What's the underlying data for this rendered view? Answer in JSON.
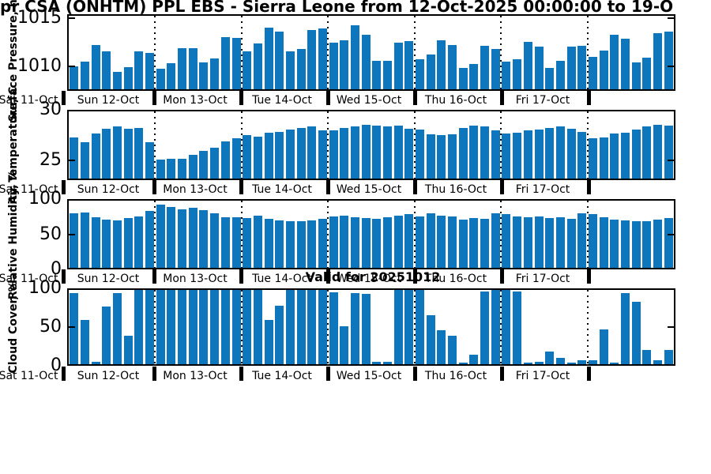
{
  "title": "pr CSA (ONHTM) PPL EBS  - Sierra Leone from 12-Oct-2025 00:00:00 to 19-O",
  "annotations": {
    "valid_for": "Valid for 20251012"
  },
  "colors": {
    "bar": "#0e76bd",
    "axis": "#000000"
  },
  "x_axis": {
    "day_labels": [
      "Sat 11-Oct",
      "Sun 12-Oct",
      "Mon 13-Oct",
      "Tue 14-Oct",
      "Wed 15-Oct",
      "Thu 16-Oct",
      "Fri 17-Oct",
      ""
    ]
  },
  "chart_data": [
    {
      "id": "surface_pressure",
      "type": "bar",
      "ylabel": "Surface Pressure, hPa",
      "ylim": [
        1007.5,
        1015.4
      ],
      "yticks": [
        1010,
        1015
      ],
      "bars_per_day": 8,
      "values": [
        1010.0,
        1010.5,
        1012.3,
        1011.6,
        1009.4,
        1009.9,
        1011.6,
        1011.4,
        1009.7,
        1010.3,
        1011.9,
        1011.9,
        1010.4,
        1010.8,
        1013.1,
        1013.0,
        1011.6,
        1012.4,
        1014.1,
        1013.7,
        1011.6,
        1011.8,
        1013.9,
        1014.0,
        1012.5,
        1012.8,
        1014.4,
        1013.4,
        1010.6,
        1010.6,
        1012.5,
        1012.7,
        1010.7,
        1011.2,
        1012.8,
        1012.3,
        1009.8,
        1010.2,
        1012.2,
        1011.8,
        1010.5,
        1010.7,
        1012.6,
        1012.1,
        1009.8,
        1010.6,
        1012.1,
        1012.2,
        1011.0,
        1011.7,
        1013.4,
        1012.9,
        1010.4,
        1010.9,
        1013.5,
        1013.7
      ]
    },
    {
      "id": "air_temperature",
      "type": "bar",
      "ylabel": "Air Temperature, C",
      "ylim": [
        23,
        30
      ],
      "yticks": [
        25,
        30
      ],
      "bars_per_day": 8,
      "values": [
        27.3,
        26.8,
        27.7,
        28.2,
        28.4,
        28.2,
        28.3,
        26.8,
        25.0,
        25.1,
        25.1,
        25.5,
        25.9,
        26.2,
        26.9,
        27.2,
        27.5,
        27.4,
        27.8,
        27.9,
        28.1,
        28.3,
        28.4,
        28.0,
        28.0,
        28.3,
        28.4,
        28.6,
        28.5,
        28.4,
        28.5,
        28.2,
        28.1,
        27.6,
        27.5,
        27.6,
        28.3,
        28.5,
        28.4,
        28.0,
        27.7,
        27.8,
        28.0,
        28.1,
        28.3,
        28.4,
        28.2,
        27.9,
        27.2,
        27.3,
        27.7,
        27.8,
        28.1,
        28.4,
        28.6,
        28.5
      ]
    },
    {
      "id": "relative_humidity",
      "type": "bar",
      "ylabel": "Relative Humidity, %",
      "ylim": [
        0,
        100
      ],
      "yticks": [
        0,
        50,
        100
      ],
      "bars_per_day": 8,
      "values": [
        81,
        82,
        75,
        72,
        71,
        74,
        76,
        85,
        94,
        91,
        87,
        90,
        86,
        81,
        75,
        75,
        74,
        78,
        73,
        71,
        69,
        70,
        71,
        73,
        76,
        78,
        75,
        74,
        73,
        75,
        78,
        80,
        76,
        81,
        78,
        77,
        72,
        74,
        73,
        81,
        80,
        77,
        75,
        76,
        74,
        75,
        73,
        81,
        80,
        75,
        72,
        71,
        69,
        70,
        72,
        74
      ]
    },
    {
      "id": "cloud_cover",
      "type": "bar",
      "ylabel": "Cloud Cover, %",
      "ylim": [
        0,
        100
      ],
      "yticks": [
        0,
        50,
        100
      ],
      "bars_per_day": 8,
      "values": [
        96,
        60,
        3,
        78,
        96,
        38,
        100,
        100,
        100,
        100,
        100,
        100,
        100,
        100,
        100,
        100,
        100,
        100,
        60,
        79,
        100,
        100,
        100,
        100,
        97,
        51,
        96,
        95,
        3,
        3,
        100,
        100,
        100,
        66,
        46,
        38,
        2,
        13,
        98,
        100,
        100,
        98,
        2,
        3,
        17,
        8,
        2,
        5,
        5,
        47,
        2,
        96,
        84,
        19,
        5,
        19
      ]
    }
  ]
}
